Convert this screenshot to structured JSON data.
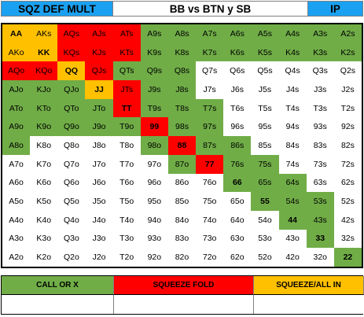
{
  "header": {
    "left": "SQZ DEF MULT",
    "middle": "BB vs BTN y SB",
    "right": "IP"
  },
  "colors": {
    "g": "#70ad47",
    "r": "#ff0000",
    "o": "#ffc000",
    "w": "#ffffff",
    "header_blue": "#1ba1f2"
  },
  "grid": {
    "rows": [
      [
        {
          "t": "AA",
          "c": "o",
          "b": 1
        },
        {
          "t": "AKs",
          "c": "o"
        },
        {
          "t": "AQs",
          "c": "r"
        },
        {
          "t": "AJs",
          "c": "r"
        },
        {
          "t": "ATs",
          "c": "r"
        },
        {
          "t": "A9s",
          "c": "g"
        },
        {
          "t": "A8s",
          "c": "g"
        },
        {
          "t": "A7s",
          "c": "g"
        },
        {
          "t": "A6s",
          "c": "g"
        },
        {
          "t": "A5s",
          "c": "g"
        },
        {
          "t": "A4s",
          "c": "g"
        },
        {
          "t": "A3s",
          "c": "g"
        },
        {
          "t": "A2s",
          "c": "g"
        }
      ],
      [
        {
          "t": "AKo",
          "c": "o"
        },
        {
          "t": "KK",
          "c": "o",
          "b": 1
        },
        {
          "t": "KQs",
          "c": "r"
        },
        {
          "t": "KJs",
          "c": "r"
        },
        {
          "t": "KTs",
          "c": "r"
        },
        {
          "t": "K9s",
          "c": "g"
        },
        {
          "t": "K8s",
          "c": "g"
        },
        {
          "t": "K7s",
          "c": "g"
        },
        {
          "t": "K6s",
          "c": "g"
        },
        {
          "t": "K5s",
          "c": "g"
        },
        {
          "t": "K4s",
          "c": "g"
        },
        {
          "t": "K3s",
          "c": "g"
        },
        {
          "t": "K2s",
          "c": "g"
        }
      ],
      [
        {
          "t": "AQo",
          "c": "r"
        },
        {
          "t": "KQo",
          "c": "r"
        },
        {
          "t": "QQ",
          "c": "o",
          "b": 1
        },
        {
          "t": "QJs",
          "c": "r"
        },
        {
          "t": "QTs",
          "c": "g"
        },
        {
          "t": "Q9s",
          "c": "g"
        },
        {
          "t": "Q8s",
          "c": "g"
        },
        {
          "t": "Q7s",
          "c": "w"
        },
        {
          "t": "Q6s",
          "c": "w"
        },
        {
          "t": "Q5s",
          "c": "w"
        },
        {
          "t": "Q4s",
          "c": "w"
        },
        {
          "t": "Q3s",
          "c": "w"
        },
        {
          "t": "Q2s",
          "c": "w"
        }
      ],
      [
        {
          "t": "AJo",
          "c": "g"
        },
        {
          "t": "KJo",
          "c": "g"
        },
        {
          "t": "QJo",
          "c": "g"
        },
        {
          "t": "JJ",
          "c": "o",
          "b": 1
        },
        {
          "t": "JTs",
          "c": "r"
        },
        {
          "t": "J9s",
          "c": "g"
        },
        {
          "t": "J8s",
          "c": "g"
        },
        {
          "t": "J7s",
          "c": "w"
        },
        {
          "t": "J6s",
          "c": "w"
        },
        {
          "t": "J5s",
          "c": "w"
        },
        {
          "t": "J4s",
          "c": "w"
        },
        {
          "t": "J3s",
          "c": "w"
        },
        {
          "t": "J2s",
          "c": "w"
        }
      ],
      [
        {
          "t": "ATo",
          "c": "g"
        },
        {
          "t": "KTo",
          "c": "g"
        },
        {
          "t": "QTo",
          "c": "g"
        },
        {
          "t": "JTo",
          "c": "g"
        },
        {
          "t": "TT",
          "c": "r",
          "b": 1
        },
        {
          "t": "T9s",
          "c": "g"
        },
        {
          "t": "T8s",
          "c": "g"
        },
        {
          "t": "T7s",
          "c": "g"
        },
        {
          "t": "T6s",
          "c": "w"
        },
        {
          "t": "T5s",
          "c": "w"
        },
        {
          "t": "T4s",
          "c": "w"
        },
        {
          "t": "T3s",
          "c": "w"
        },
        {
          "t": "T2s",
          "c": "w"
        }
      ],
      [
        {
          "t": "A9o",
          "c": "g"
        },
        {
          "t": "K9o",
          "c": "g"
        },
        {
          "t": "Q9o",
          "c": "g"
        },
        {
          "t": "J9o",
          "c": "g"
        },
        {
          "t": "T9o",
          "c": "g"
        },
        {
          "t": "99",
          "c": "r",
          "b": 1
        },
        {
          "t": "98s",
          "c": "g"
        },
        {
          "t": "97s",
          "c": "g"
        },
        {
          "t": "96s",
          "c": "w"
        },
        {
          "t": "95s",
          "c": "w"
        },
        {
          "t": "94s",
          "c": "w"
        },
        {
          "t": "93s",
          "c": "w"
        },
        {
          "t": "92s",
          "c": "w"
        }
      ],
      [
        {
          "t": "A8o",
          "c": "g"
        },
        {
          "t": "K8o",
          "c": "w"
        },
        {
          "t": "Q8o",
          "c": "w"
        },
        {
          "t": "J8o",
          "c": "w"
        },
        {
          "t": "T8o",
          "c": "w"
        },
        {
          "t": "98o",
          "c": "g"
        },
        {
          "t": "88",
          "c": "r",
          "b": 1
        },
        {
          "t": "87s",
          "c": "g"
        },
        {
          "t": "86s",
          "c": "g"
        },
        {
          "t": "85s",
          "c": "w"
        },
        {
          "t": "84s",
          "c": "w"
        },
        {
          "t": "83s",
          "c": "w"
        },
        {
          "t": "82s",
          "c": "w"
        }
      ],
      [
        {
          "t": "A7o",
          "c": "w"
        },
        {
          "t": "K7o",
          "c": "w"
        },
        {
          "t": "Q7o",
          "c": "w"
        },
        {
          "t": "J7o",
          "c": "w"
        },
        {
          "t": "T7o",
          "c": "w"
        },
        {
          "t": "97o",
          "c": "w"
        },
        {
          "t": "87o",
          "c": "g"
        },
        {
          "t": "77",
          "c": "r",
          "b": 1
        },
        {
          "t": "76s",
          "c": "g"
        },
        {
          "t": "75s",
          "c": "g"
        },
        {
          "t": "74s",
          "c": "w"
        },
        {
          "t": "73s",
          "c": "w"
        },
        {
          "t": "72s",
          "c": "w"
        }
      ],
      [
        {
          "t": "A6o",
          "c": "w"
        },
        {
          "t": "K6o",
          "c": "w"
        },
        {
          "t": "Q6o",
          "c": "w"
        },
        {
          "t": "J6o",
          "c": "w"
        },
        {
          "t": "T6o",
          "c": "w"
        },
        {
          "t": "96o",
          "c": "w"
        },
        {
          "t": "86o",
          "c": "w"
        },
        {
          "t": "76o",
          "c": "w"
        },
        {
          "t": "66",
          "c": "g",
          "b": 1
        },
        {
          "t": "65s",
          "c": "g"
        },
        {
          "t": "64s",
          "c": "g"
        },
        {
          "t": "63s",
          "c": "w"
        },
        {
          "t": "62s",
          "c": "w"
        }
      ],
      [
        {
          "t": "A5o",
          "c": "w"
        },
        {
          "t": "K5o",
          "c": "w"
        },
        {
          "t": "Q5o",
          "c": "w"
        },
        {
          "t": "J5o",
          "c": "w"
        },
        {
          "t": "T5o",
          "c": "w"
        },
        {
          "t": "95o",
          "c": "w"
        },
        {
          "t": "85o",
          "c": "w"
        },
        {
          "t": "75o",
          "c": "w"
        },
        {
          "t": "65o",
          "c": "w"
        },
        {
          "t": "55",
          "c": "g",
          "b": 1
        },
        {
          "t": "54s",
          "c": "g"
        },
        {
          "t": "53s",
          "c": "g"
        },
        {
          "t": "52s",
          "c": "w"
        }
      ],
      [
        {
          "t": "A4o",
          "c": "w"
        },
        {
          "t": "K4o",
          "c": "w"
        },
        {
          "t": "Q4o",
          "c": "w"
        },
        {
          "t": "J4o",
          "c": "w"
        },
        {
          "t": "T4o",
          "c": "w"
        },
        {
          "t": "94o",
          "c": "w"
        },
        {
          "t": "84o",
          "c": "w"
        },
        {
          "t": "74o",
          "c": "w"
        },
        {
          "t": "64o",
          "c": "w"
        },
        {
          "t": "54o",
          "c": "w"
        },
        {
          "t": "44",
          "c": "g",
          "b": 1
        },
        {
          "t": "43s",
          "c": "g"
        },
        {
          "t": "42s",
          "c": "w"
        }
      ],
      [
        {
          "t": "A3o",
          "c": "w"
        },
        {
          "t": "K3o",
          "c": "w"
        },
        {
          "t": "Q3o",
          "c": "w"
        },
        {
          "t": "J3o",
          "c": "w"
        },
        {
          "t": "T3o",
          "c": "w"
        },
        {
          "t": "93o",
          "c": "w"
        },
        {
          "t": "83o",
          "c": "w"
        },
        {
          "t": "73o",
          "c": "w"
        },
        {
          "t": "63o",
          "c": "w"
        },
        {
          "t": "53o",
          "c": "w"
        },
        {
          "t": "43o",
          "c": "w"
        },
        {
          "t": "33",
          "c": "g",
          "b": 1
        },
        {
          "t": "32s",
          "c": "w"
        }
      ],
      [
        {
          "t": "A2o",
          "c": "w"
        },
        {
          "t": "K2o",
          "c": "w"
        },
        {
          "t": "Q2o",
          "c": "w"
        },
        {
          "t": "J2o",
          "c": "w"
        },
        {
          "t": "T2o",
          "c": "w"
        },
        {
          "t": "92o",
          "c": "w"
        },
        {
          "t": "82o",
          "c": "w"
        },
        {
          "t": "72o",
          "c": "w"
        },
        {
          "t": "62o",
          "c": "w"
        },
        {
          "t": "52o",
          "c": "w"
        },
        {
          "t": "42o",
          "c": "w"
        },
        {
          "t": "32o",
          "c": "w"
        },
        {
          "t": "22",
          "c": "g",
          "b": 1
        }
      ]
    ]
  },
  "legend": {
    "items": [
      {
        "label": "CALL OR X",
        "c": "g"
      },
      {
        "label": "SQUEEZE FOLD",
        "c": "r"
      },
      {
        "label": "SQUEEZE/ALL IN",
        "c": "o"
      }
    ]
  }
}
